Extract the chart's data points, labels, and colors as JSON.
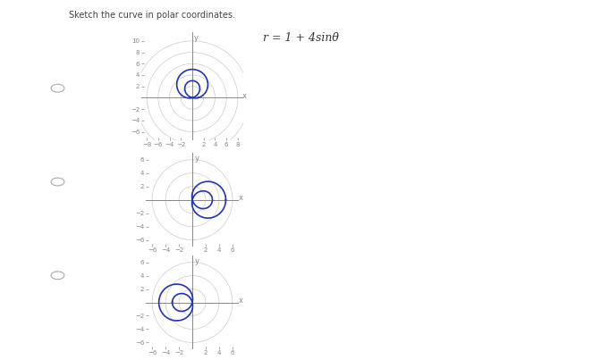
{
  "title": "Sketch the curve in polar coordinates.",
  "formula": "r = 1 + 4sinθ",
  "bg_color": "#ffffff",
  "curve_color": "#2233bb",
  "guide_color": "#cccccc",
  "axis_color": "#888888",
  "tick_color": "#888888",
  "plots": [
    {
      "xlim": [
        -9.0,
        9.0
      ],
      "ylim": [
        -7.5,
        11.5
      ],
      "xticks": [
        -8,
        -6,
        -4,
        -2,
        2,
        4,
        6,
        8
      ],
      "yticks": [
        -6,
        -4,
        -2,
        2,
        4,
        6,
        8,
        10
      ],
      "guide_radii": [
        2,
        4,
        6,
        8,
        10
      ],
      "a": 1,
      "b": 4,
      "use_cos": false,
      "negate": false
    },
    {
      "xlim": [
        -7.0,
        7.0
      ],
      "ylim": [
        -7.0,
        7.0
      ],
      "xticks": [
        -6,
        -4,
        -2,
        2,
        4,
        6
      ],
      "yticks": [
        -6,
        -4,
        -2,
        2,
        4,
        6
      ],
      "guide_radii": [
        2,
        4,
        6
      ],
      "a": 1,
      "b": 4,
      "use_cos": true,
      "negate": false
    },
    {
      "xlim": [
        -7.0,
        7.0
      ],
      "ylim": [
        -7.0,
        7.0
      ],
      "xticks": [
        -6,
        -4,
        -2,
        2,
        4,
        6
      ],
      "yticks": [
        -6,
        -4,
        -2,
        2,
        4,
        6
      ],
      "guide_radii": [
        2,
        4,
        6
      ],
      "a": 1,
      "b": 4,
      "use_cos": true,
      "negate": true
    }
  ],
  "radio_button_color": "#aaaaaa",
  "fig_width": 6.72,
  "fig_height": 4.03,
  "dpi": 100
}
